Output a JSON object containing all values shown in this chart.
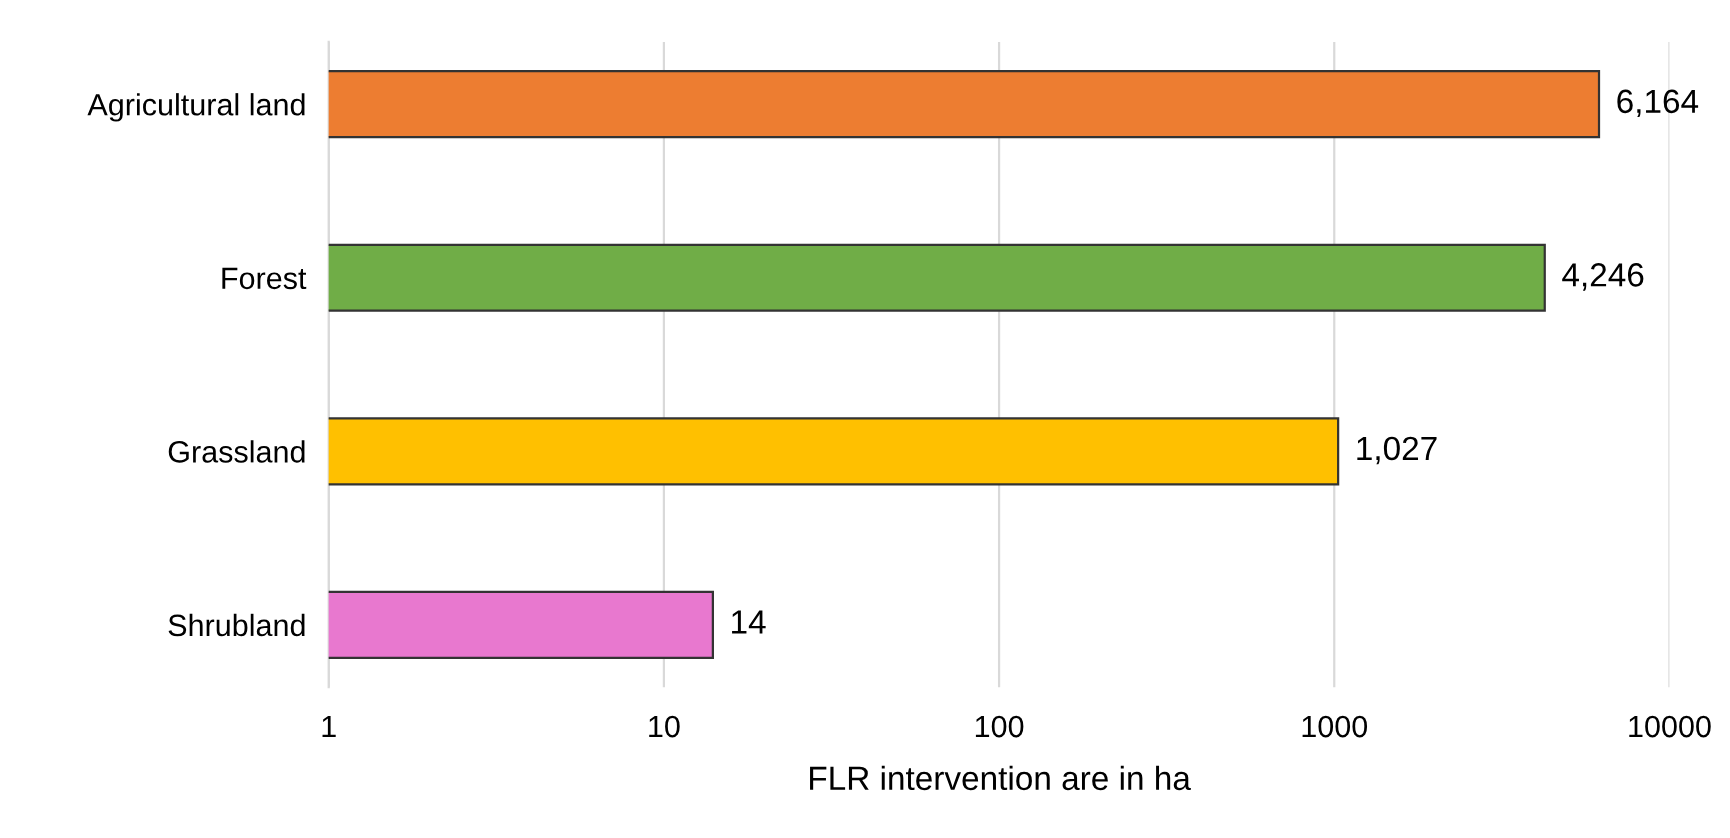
{
  "chart_data": {
    "type": "bar",
    "orientation": "horizontal",
    "log": "x",
    "categories": [
      "Agricultural land",
      "Forest",
      "Grassland",
      "Shrubland"
    ],
    "values": [
      6164,
      4246,
      1027,
      14
    ],
    "colors": [
      "#ed7d31",
      "#70ad47",
      "#ffc000",
      "#e878cf"
    ],
    "value_labels": [
      "6,164",
      "4,246",
      "1,027",
      "14"
    ],
    "xlabel": "FLR intervention are in ha",
    "xlim": [
      1,
      10000
    ],
    "xticks": [
      1,
      10,
      100,
      1000,
      10000
    ],
    "grid": "x",
    "legend": false
  }
}
